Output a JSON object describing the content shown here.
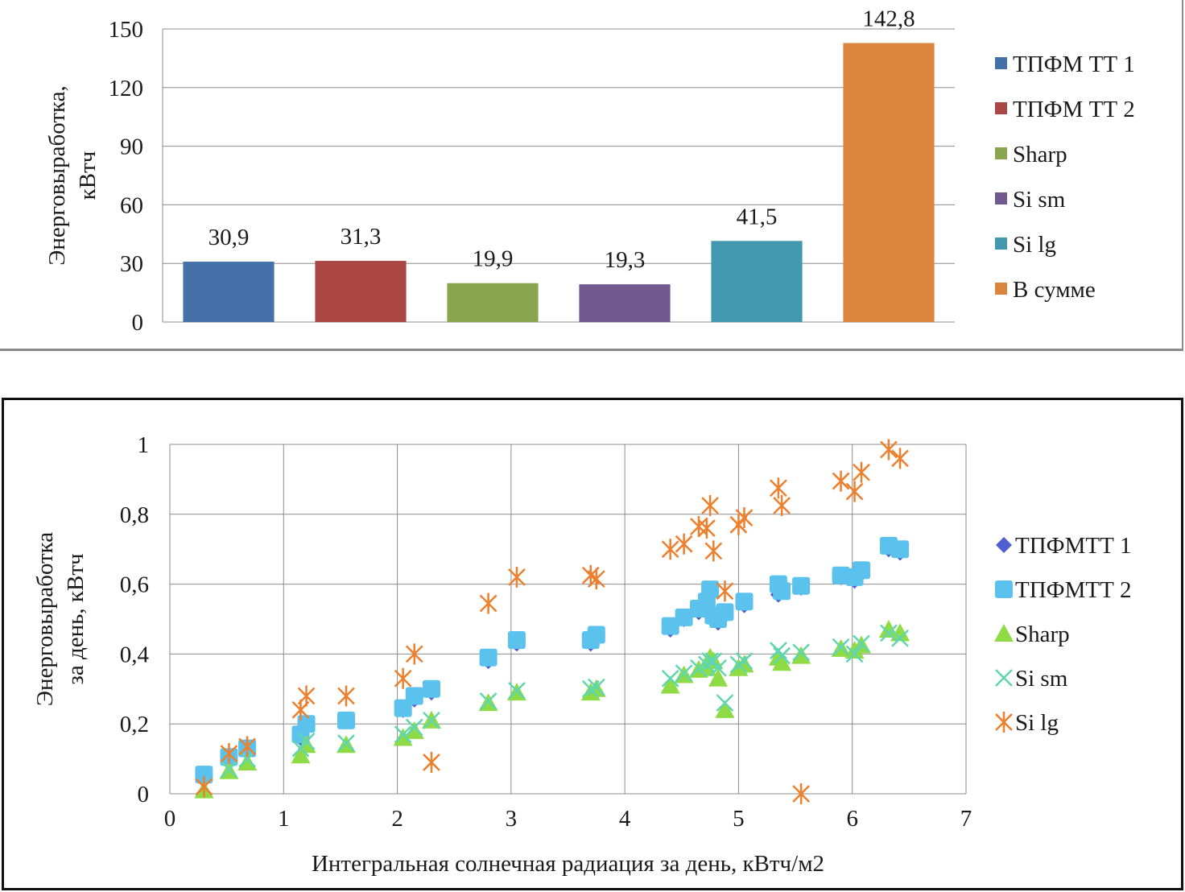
{
  "chart_data": [
    {
      "type": "bar",
      "ylabel": "Энерговыработка, кВтч",
      "ylim": [
        0,
        150
      ],
      "yticks": [
        0,
        30,
        60,
        90,
        120,
        150
      ],
      "ytick_labels": [
        "0",
        "30",
        "60",
        "90",
        "120",
        "150"
      ],
      "grid": true,
      "legend_position": "right",
      "categories": [
        "ТПФМ ТТ 1",
        "ТПФМ ТТ 2",
        "Sharp",
        "Si sm",
        "Si lg",
        "В сумме"
      ],
      "values": [
        30.9,
        31.3,
        19.9,
        19.3,
        41.5,
        142.8
      ],
      "value_labels": [
        "30,9",
        "31,3",
        "19,9",
        "19,3",
        "41,5",
        "142,8"
      ],
      "colors": [
        "#4472a8",
        "#aa4643",
        "#89a54e",
        "#71588f",
        "#4198af",
        "#db843d"
      ]
    },
    {
      "type": "scatter",
      "xlabel": "Интегральная солнечная радиация за день, кВтч/м2",
      "ylabel": "Энерговыработка за день, кВтч",
      "xlim": [
        0,
        7
      ],
      "ylim": [
        0,
        1
      ],
      "xticks": [
        0,
        1,
        2,
        3,
        4,
        5,
        6,
        7
      ],
      "xtick_labels": [
        "0",
        "1",
        "2",
        "3",
        "4",
        "5",
        "6",
        "7"
      ],
      "yticks": [
        0,
        0.2,
        0.4,
        0.6,
        0.8,
        1
      ],
      "ytick_labels": [
        "0",
        "0,2",
        "0,4",
        "0,6",
        "0,8",
        "1"
      ],
      "grid": true,
      "legend_position": "right",
      "series": [
        {
          "name": "ТПФМТТ 1",
          "marker": "diamond",
          "color": "#4f5fcf",
          "x": [
            0.3,
            0.52,
            0.68,
            1.15,
            1.2,
            1.55,
            2.05,
            2.15,
            2.3,
            2.8,
            3.05,
            3.7,
            3.75,
            4.4,
            4.52,
            4.65,
            4.72,
            4.75,
            4.78,
            4.82,
            4.88,
            5.05,
            5.35,
            5.38,
            5.55,
            5.9,
            6.02,
            6.08,
            6.32,
            6.42
          ],
          "y": [
            0.05,
            0.1,
            0.12,
            0.16,
            0.19,
            0.21,
            0.24,
            0.27,
            0.29,
            0.38,
            0.43,
            0.43,
            0.45,
            0.47,
            0.5,
            0.52,
            0.54,
            0.57,
            0.5,
            0.49,
            0.51,
            0.54,
            0.57,
            0.59,
            0.59,
            0.62,
            0.61,
            0.63,
            0.7,
            0.69
          ]
        },
        {
          "name": "ТПФМТТ 2",
          "marker": "square",
          "color": "#5bc2ee",
          "x": [
            0.3,
            0.52,
            0.68,
            1.15,
            1.2,
            1.55,
            2.05,
            2.15,
            2.3,
            2.8,
            3.05,
            3.7,
            3.75,
            4.4,
            4.52,
            4.65,
            4.72,
            4.75,
            4.78,
            4.82,
            4.88,
            5.05,
            5.35,
            5.38,
            5.55,
            5.9,
            6.02,
            6.08,
            6.32,
            6.42
          ],
          "y": [
            0.055,
            0.105,
            0.13,
            0.17,
            0.2,
            0.21,
            0.245,
            0.28,
            0.3,
            0.39,
            0.44,
            0.44,
            0.455,
            0.48,
            0.505,
            0.53,
            0.55,
            0.585,
            0.51,
            0.5,
            0.52,
            0.55,
            0.6,
            0.58,
            0.595,
            0.625,
            0.62,
            0.64,
            0.71,
            0.7
          ]
        },
        {
          "name": "Sharp",
          "marker": "triangle",
          "color": "#8edb45",
          "x": [
            0.3,
            0.52,
            0.68,
            1.15,
            1.2,
            1.55,
            2.05,
            2.15,
            2.3,
            2.8,
            3.05,
            3.7,
            3.75,
            4.4,
            4.52,
            4.65,
            4.72,
            4.75,
            4.78,
            4.82,
            4.88,
            5.0,
            5.05,
            5.35,
            5.38,
            5.55,
            5.9,
            6.02,
            6.08,
            6.32,
            6.42
          ],
          "y": [
            0.01,
            0.065,
            0.09,
            0.11,
            0.14,
            0.14,
            0.16,
            0.18,
            0.21,
            0.26,
            0.29,
            0.29,
            0.3,
            0.31,
            0.34,
            0.355,
            0.36,
            0.39,
            0.38,
            0.33,
            0.24,
            0.36,
            0.37,
            0.39,
            0.375,
            0.395,
            0.415,
            0.41,
            0.425,
            0.47,
            0.46
          ]
        },
        {
          "name": "Si sm",
          "marker": "x",
          "color": "#5fd6b0",
          "x": [
            0.3,
            0.52,
            0.68,
            1.15,
            1.2,
            1.55,
            2.05,
            2.15,
            2.3,
            2.8,
            3.05,
            3.7,
            3.75,
            4.4,
            4.52,
            4.65,
            4.72,
            4.75,
            4.78,
            4.82,
            4.88,
            5.0,
            5.05,
            5.35,
            5.38,
            5.55,
            5.9,
            6.02,
            6.08,
            6.32,
            6.42
          ],
          "y": [
            0.02,
            0.07,
            0.1,
            0.13,
            0.15,
            0.145,
            0.17,
            0.19,
            0.21,
            0.265,
            0.295,
            0.3,
            0.305,
            0.33,
            0.345,
            0.36,
            0.37,
            0.38,
            0.38,
            0.36,
            0.26,
            0.37,
            0.38,
            0.41,
            0.395,
            0.405,
            0.42,
            0.4,
            0.43,
            0.46,
            0.445
          ]
        },
        {
          "name": "Si lg",
          "marker": "asterisk",
          "color": "#ee7f2d",
          "x": [
            0.3,
            0.52,
            0.68,
            1.15,
            1.2,
            1.55,
            2.05,
            2.15,
            2.3,
            2.8,
            3.05,
            3.7,
            3.75,
            4.4,
            4.52,
            4.65,
            4.72,
            4.75,
            4.78,
            4.88,
            5.0,
            5.05,
            5.35,
            5.38,
            5.55,
            5.9,
            6.02,
            6.08,
            6.32,
            6.42
          ],
          "y": [
            0.02,
            0.115,
            0.135,
            0.24,
            0.28,
            0.28,
            0.33,
            0.4,
            0.09,
            0.545,
            0.62,
            0.625,
            0.615,
            0.7,
            0.715,
            0.765,
            0.76,
            0.825,
            0.695,
            0.58,
            0.77,
            0.79,
            0.875,
            0.825,
            0.0,
            0.895,
            0.865,
            0.92,
            0.985,
            0.96
          ]
        }
      ]
    }
  ]
}
